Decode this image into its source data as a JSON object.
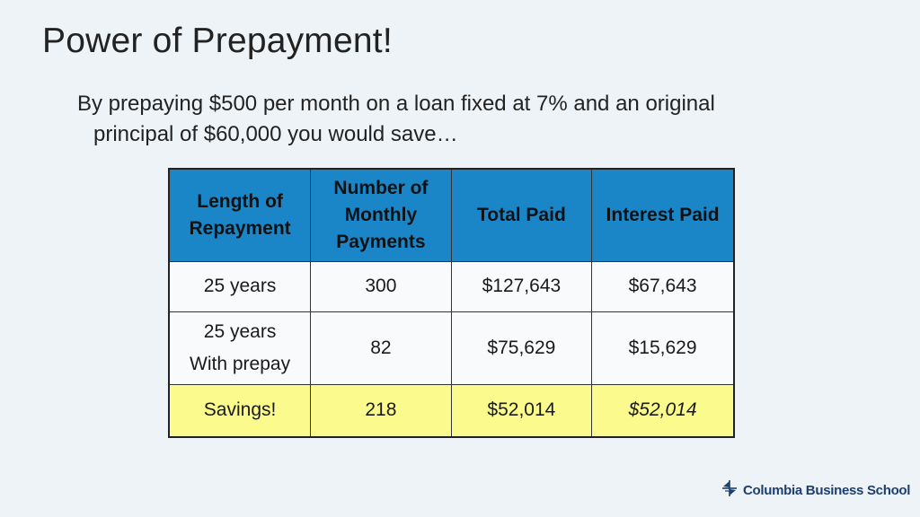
{
  "slide": {
    "title": "Power of Prepayment!",
    "body_line1": "By prepaying $500 per month on a loan fixed at 7% and an original",
    "body_line2": "principal of $60,000 you would save…"
  },
  "table": {
    "headers": [
      {
        "line1": "Length of",
        "line2": "Repayment"
      },
      {
        "line1": "Number of",
        "line2": "Monthly",
        "line3": "Payments"
      },
      {
        "line1": "Total Paid"
      },
      {
        "line1": "Interest Paid"
      }
    ],
    "rows": [
      {
        "length": "25 years",
        "payments": "300",
        "total": "$127,643",
        "interest": "$67,643"
      },
      {
        "length_line1": "25 years",
        "length_line2": "With prepay",
        "payments": "82",
        "total": "$75,629",
        "interest": "$15,629"
      },
      {
        "length": "Savings!",
        "payments": "218",
        "total": "$52,014",
        "interest": "$52,014"
      }
    ],
    "colors": {
      "header_bg": "#1a86c7",
      "savings_bg": "#fbfa8c",
      "cell_bg": "#f9fafb"
    }
  },
  "logo": {
    "text": "Columbia Business School",
    "icon": "columbia-crown-icon",
    "color": "#1d3f6e"
  }
}
